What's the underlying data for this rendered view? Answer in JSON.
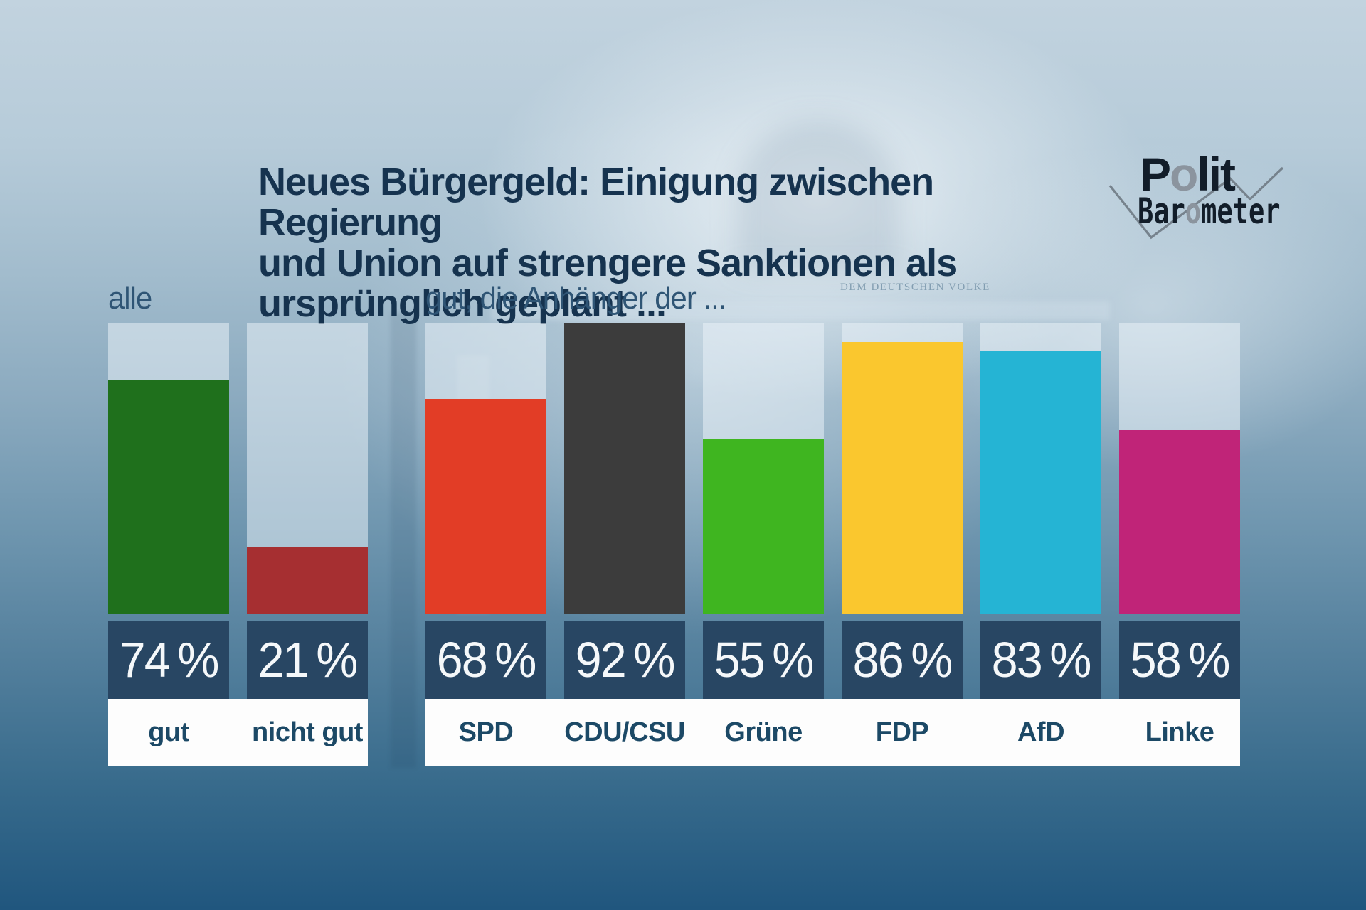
{
  "header": {
    "title_lines": [
      "Neues Bürgergeld: Einigung zwischen Regierung",
      "und Union auf strengere Sanktionen als",
      "ursprünglich geplant ..."
    ]
  },
  "logo": {
    "polit": [
      {
        "text": "P"
      },
      {
        "text": "o",
        "muted": true
      },
      {
        "text": "lit"
      }
    ],
    "barometer": [
      {
        "text": "Bar"
      },
      {
        "text": "o",
        "muted": true
      },
      {
        "text": "meter"
      }
    ]
  },
  "background": {
    "inscription": "DEM DEUTSCHEN VOLKE"
  },
  "charts": [
    {
      "label": "alle",
      "bars": [
        {
          "category": "gut",
          "value": 74,
          "display": "74 %",
          "color": "#1f701c"
        },
        {
          "category": "nicht gut",
          "value": 21,
          "display": "21 %",
          "color": "#a62f31"
        }
      ]
    },
    {
      "label": "gut, die Anhänger der ...",
      "bars": [
        {
          "category": "SPD",
          "value": 68,
          "display": "68 %",
          "color": "#e23d26"
        },
        {
          "category": "CDU/CSU",
          "value": 92,
          "display": "92 %",
          "color": "#3c3c3c"
        },
        {
          "category": "Grüne",
          "value": 55,
          "display": "55 %",
          "color": "#3fb520"
        },
        {
          "category": "FDP",
          "value": 86,
          "display": "86 %",
          "color": "#fac72e"
        },
        {
          "category": "AfD",
          "value": 83,
          "display": "83 %",
          "color": "#25b4d4"
        },
        {
          "category": "Linke",
          "value": 58,
          "display": "58 %",
          "color": "#c02478"
        }
      ]
    }
  ],
  "chart_data": {
    "type": "bar",
    "title": "Neues Bürgergeld: Einigung zwischen Regierung und Union auf strengere Sanktionen als ursprünglich geplant ...",
    "unit": "%",
    "ylim": [
      0,
      92
    ],
    "grid": false,
    "legend": "none",
    "groups": [
      {
        "label": "alle",
        "categories": [
          "gut",
          "nicht gut"
        ],
        "values": [
          74,
          21
        ],
        "colors": [
          "#1f701c",
          "#a62f31"
        ]
      },
      {
        "label": "gut, die Anhänger der ...",
        "categories": [
          "SPD",
          "CDU/CSU",
          "Grüne",
          "FDP",
          "AfD",
          "Linke"
        ],
        "values": [
          68,
          92,
          55,
          86,
          83,
          58
        ],
        "colors": [
          "#e23d26",
          "#3c3c3c",
          "#3fb520",
          "#fac72e",
          "#25b4d4",
          "#c02478"
        ]
      }
    ],
    "source_brand": "Politbarometer"
  }
}
